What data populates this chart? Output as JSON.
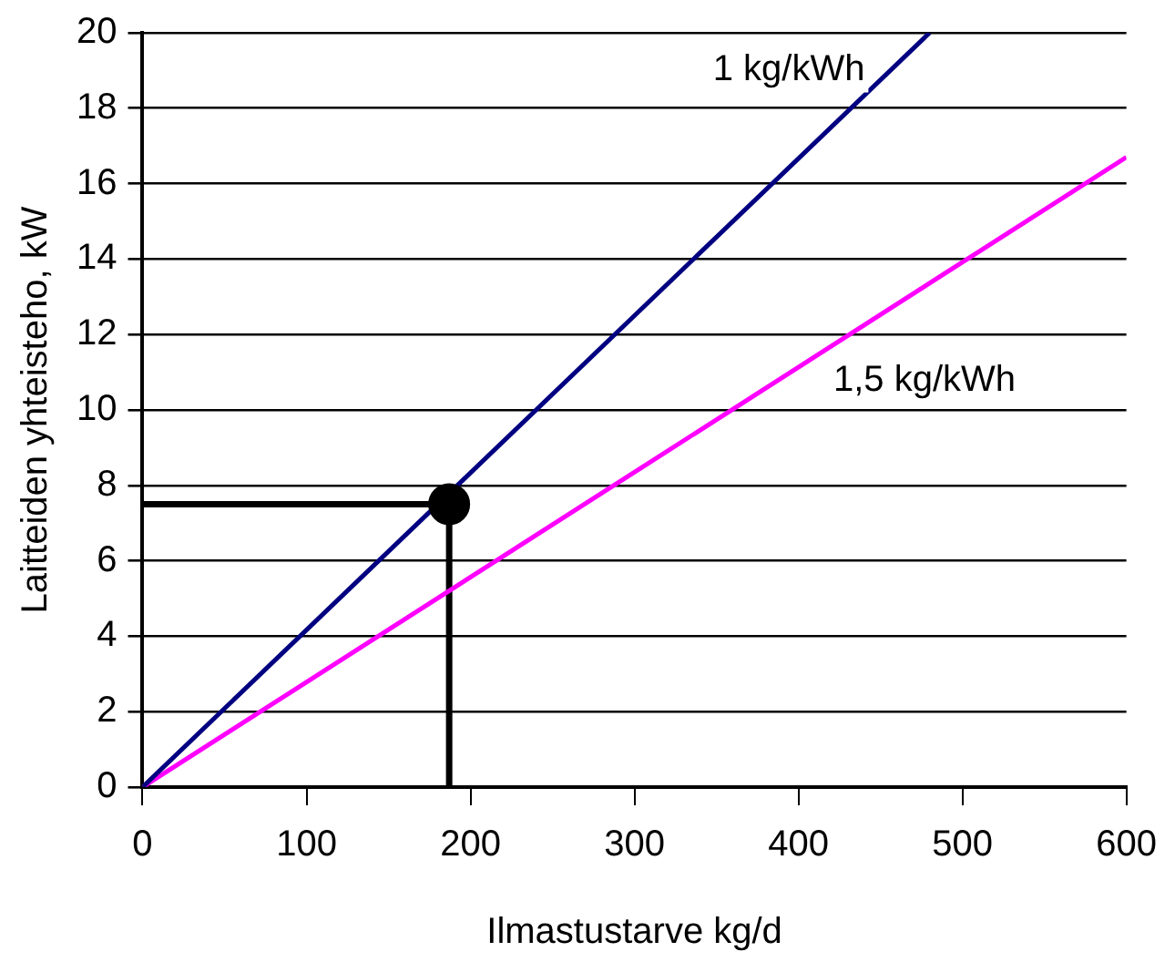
{
  "chart_data": {
    "type": "line",
    "xlabel": "Ilmastustarve kg/d",
    "ylabel": "Laitteiden yhteisteho, kW",
    "xlim": [
      0,
      600
    ],
    "xticks": [
      0,
      100,
      200,
      300,
      400,
      500,
      600
    ],
    "ylim": [
      0,
      20
    ],
    "yticks": [
      0,
      2,
      4,
      6,
      8,
      10,
      12,
      14,
      16,
      18,
      20
    ],
    "grid": "y",
    "legend": false,
    "marker": "none",
    "line_style": "solid",
    "series": [
      {
        "name": "1 kg/kWh",
        "color": "#000080",
        "x": [
          0,
          480
        ],
        "values": [
          0,
          20
        ]
      },
      {
        "name": "1,5 kg/kWh",
        "color": "#ff00ff",
        "x": [
          0,
          600
        ],
        "values": [
          0,
          16.7
        ]
      },
      {
        "color": "#000000",
        "x": [
          0,
          187,
          187
        ],
        "values": [
          7.5,
          7.5,
          0
        ]
      },
      {
        "type": "scatter",
        "color": "#000000",
        "marker": "circle",
        "x": [
          187
        ],
        "values": [
          7.5
        ]
      }
    ]
  }
}
